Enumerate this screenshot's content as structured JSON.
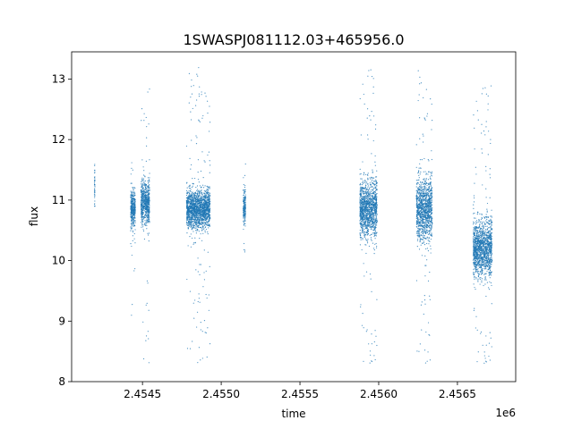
{
  "chart_data": {
    "type": "scatter",
    "title": "1SWASPJ081112.03+465956.0",
    "xlabel": "time",
    "ylabel": "flux",
    "x_offset_label": "1e6",
    "xlim": [
      2454050,
      2456870
    ],
    "ylim": [
      8.0,
      13.45
    ],
    "x_ticks": [
      2454500,
      2455000,
      2455500,
      2456000,
      2456500
    ],
    "x_tick_labels": [
      "2.4545",
      "2.4550",
      "2.4555",
      "2.4560",
      "2.4565"
    ],
    "y_ticks": [
      8,
      9,
      10,
      11,
      12,
      13
    ],
    "y_tick_labels": [
      "8",
      "9",
      "10",
      "11",
      "12",
      "13"
    ],
    "grid": false,
    "legend": "none",
    "marker_color": "#1f77b4",
    "series": [
      {
        "segments": [
          {
            "t_start": 2454195,
            "t_end": 2454198,
            "flux_center": 11.2,
            "core_spread": 0.35,
            "min": 10.9,
            "max": 12.0
          },
          {
            "t_start": 2454425,
            "t_end": 2454455,
            "flux_center": 10.85,
            "core_spread": 0.28,
            "min": 9.0,
            "max": 11.7
          },
          {
            "t_start": 2454490,
            "t_end": 2454545,
            "flux_center": 10.95,
            "core_spread": 0.32,
            "min": 8.3,
            "max": 12.9
          },
          {
            "t_start": 2454780,
            "t_end": 2454930,
            "flux_center": 10.85,
            "core_spread": 0.28,
            "min": 8.3,
            "max": 13.2
          },
          {
            "t_start": 2455140,
            "t_end": 2455155,
            "flux_center": 10.9,
            "core_spread": 0.25,
            "min": 10.1,
            "max": 11.6
          },
          {
            "t_start": 2455880,
            "t_end": 2455990,
            "flux_center": 10.85,
            "core_spread": 0.42,
            "min": 8.25,
            "max": 13.2
          },
          {
            "t_start": 2456240,
            "t_end": 2456340,
            "flux_center": 10.85,
            "core_spread": 0.45,
            "min": 8.25,
            "max": 13.25
          },
          {
            "t_start": 2456600,
            "t_end": 2456720,
            "flux_center": 10.2,
            "core_spread": 0.42,
            "min": 8.25,
            "max": 12.9
          }
        ]
      }
    ]
  }
}
